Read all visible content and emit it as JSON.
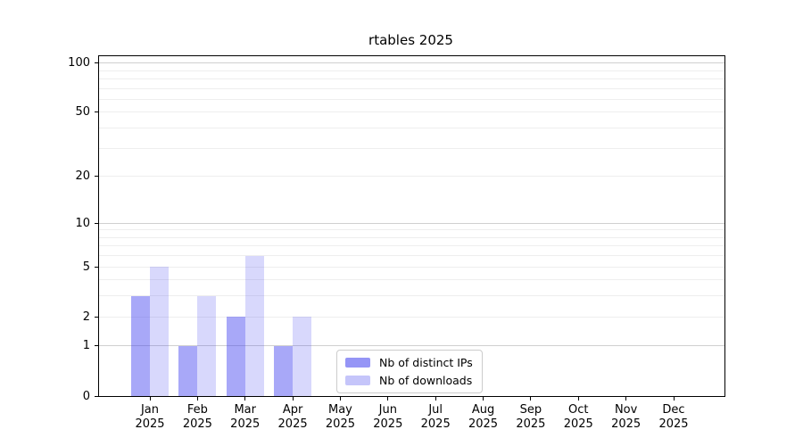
{
  "chart_data": {
    "type": "bar",
    "title": "rtables 2025",
    "categories": [
      "Jan",
      "Feb",
      "Mar",
      "Apr",
      "May",
      "Jun",
      "Jul",
      "Aug",
      "Sep",
      "Oct",
      "Nov",
      "Dec"
    ],
    "category_year": "2025",
    "series": [
      {
        "name": "Nb of distinct IPs",
        "color": "#3e3eef",
        "alpha": 0.45,
        "rendered_color": "#a8a8f8",
        "values": [
          3,
          1,
          2,
          1,
          0,
          0,
          0,
          0,
          0,
          0,
          0,
          0
        ]
      },
      {
        "name": "Nb of downloads",
        "color": "#3e3eef",
        "alpha": 0.2,
        "rendered_color": "#d8d8fa",
        "values": [
          5,
          3,
          6,
          2,
          0,
          0,
          0,
          0,
          0,
          0,
          0,
          0
        ]
      }
    ],
    "yscale": "log1p",
    "ylim": [
      0,
      110
    ],
    "yticks": [
      100,
      50,
      20,
      10,
      5,
      2,
      1,
      0
    ],
    "grid": {
      "major_values": [
        1,
        10,
        100
      ],
      "minor_values": [
        2,
        3,
        4,
        5,
        6,
        7,
        8,
        9,
        20,
        30,
        40,
        50,
        60,
        70,
        80,
        90
      ],
      "major_color": "#d0d0d0",
      "minor_color": "#eeeeee"
    },
    "legend_position": "lower center-left inside plot",
    "xlabel": "",
    "ylabel": ""
  }
}
